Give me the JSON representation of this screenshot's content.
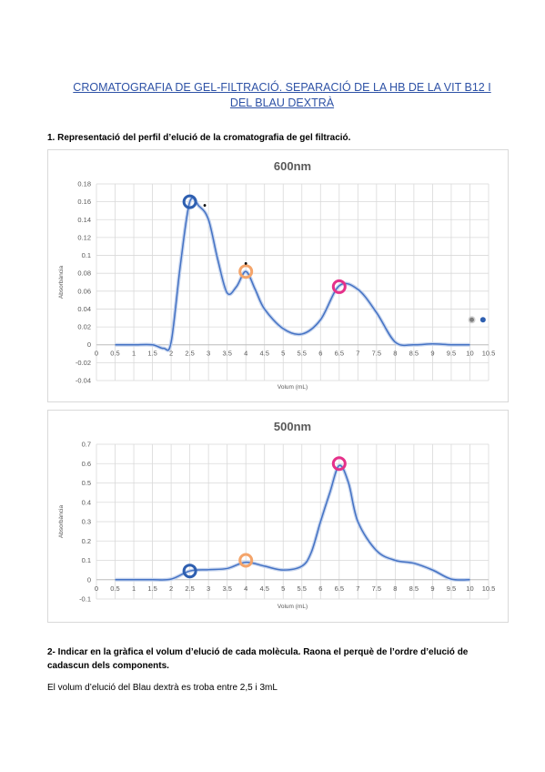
{
  "document": {
    "title_line1": "CROMATOGRAFIA DE GEL-FILTRACIÓ. SEPARACIÓ DE LA HB DE LA VIT B12 I",
    "title_line2": "DEL BLAU DEXTRÀ",
    "question1": "1.   Representació del perfil d’elució de la cromatografia de gel filtració.",
    "question2": "2-    Indicar en la gràfica el volum d’elució de cada molècula. Raona el perquè de l’ordre d’elució de cadascun dels components.",
    "answer": "El volum d’elució del Blau dextrà es troba entre 2,5 i 3mL"
  },
  "colors": {
    "line": "#4472c4",
    "blue_marker": "#2e5fb0",
    "orange_marker": "#f4a46a",
    "pink_marker": "#e5318a"
  },
  "chart_data": [
    {
      "type": "line",
      "title": "600nm",
      "xlabel": "Volum (mL)",
      "ylabel": "Absorbància",
      "xlim": [
        0,
        10.5
      ],
      "ylim": [
        -0.04,
        0.18
      ],
      "yticks": [
        -0.04,
        -0.02,
        0,
        0.02,
        0.04,
        0.06,
        0.08,
        0.1,
        0.12,
        0.14,
        0.16,
        0.18
      ],
      "ytick_labels": [
        "-0.04",
        "-0.02",
        "0",
        "0.02",
        "0.04",
        "0.06",
        "0.08",
        "0.1",
        "0.12",
        "0.14",
        "0.16",
        "0.18"
      ],
      "xticks": [
        0,
        0.5,
        1,
        1.5,
        2,
        2.5,
        3,
        3.5,
        4,
        4.5,
        5,
        5.5,
        6,
        6.5,
        7,
        7.5,
        8,
        8.5,
        9,
        9.5,
        10,
        10.5
      ],
      "xtick_labels": [
        "0",
        "0.5",
        "1",
        "1.5",
        "2",
        "2.5",
        "3",
        "3.5",
        "4",
        "4.5",
        "5",
        "5.5",
        "6",
        "6.5",
        "7",
        "7.5",
        "8",
        "8.5",
        "9",
        "9.5",
        "10",
        "10.5"
      ],
      "series": [
        {
          "x": [
            0.5,
            1,
            1.5,
            1.8,
            2,
            2.25,
            2.5,
            2.75,
            3,
            3.25,
            3.5,
            3.75,
            4,
            4.25,
            4.5,
            5,
            5.5,
            6,
            6.5,
            7,
            7.5,
            8,
            8.5,
            9,
            9.5,
            10
          ],
          "y": [
            0,
            0,
            0,
            -0.004,
            0.003,
            0.09,
            0.16,
            0.155,
            0.14,
            0.095,
            0.058,
            0.065,
            0.082,
            0.062,
            0.04,
            0.018,
            0.012,
            0.028,
            0.066,
            0.062,
            0.036,
            0.003,
            0,
            0.001,
            0,
            0
          ]
        }
      ],
      "markers": [
        {
          "x": 2.5,
          "y": 0.16,
          "color": "blue"
        },
        {
          "x": 4.0,
          "y": 0.082,
          "color": "orange"
        },
        {
          "x": 6.5,
          "y": 0.065,
          "color": "pink"
        }
      ],
      "dots": [
        {
          "x": 2.9,
          "y": 0.156
        },
        {
          "x": 4.0,
          "y": 0.091
        }
      ],
      "legend_dots": [
        {
          "x": 10.05,
          "y": 0.028,
          "color": "gray"
        },
        {
          "x": 10.35,
          "y": 0.028,
          "color": "blue"
        }
      ]
    },
    {
      "type": "line",
      "title": "500nm",
      "xlabel": "Volum (mL)",
      "ylabel": "Absorbància",
      "xlim": [
        0,
        10.5
      ],
      "ylim": [
        -0.1,
        0.7
      ],
      "yticks": [
        -0.1,
        0,
        0.1,
        0.2,
        0.3,
        0.4,
        0.5,
        0.6,
        0.7
      ],
      "ytick_labels": [
        "-0.1",
        "0",
        "0.1",
        "0.2",
        "0.3",
        "0.4",
        "0.5",
        "0.6",
        "0.7"
      ],
      "xticks": [
        0,
        0.5,
        1,
        1.5,
        2,
        2.5,
        3,
        3.5,
        4,
        4.5,
        5,
        5.5,
        6,
        6.5,
        7,
        7.5,
        8,
        8.5,
        9,
        9.5,
        10,
        10.5
      ],
      "xtick_labels": [
        "0",
        "0.5",
        "1",
        "1.5",
        "2",
        "2.5",
        "3",
        "3.5",
        "4",
        "4.5",
        "5",
        "5.5",
        "6",
        "6.5",
        "7",
        "7.5",
        "8",
        "8.5",
        "9",
        "9.5",
        "10",
        "10.5"
      ],
      "series": [
        {
          "x": [
            0.5,
            1,
            1.5,
            2,
            2.5,
            3,
            3.5,
            4,
            4.5,
            5,
            5.5,
            5.75,
            6,
            6.25,
            6.5,
            6.75,
            7,
            7.5,
            8,
            8.5,
            9,
            9.5,
            10
          ],
          "y": [
            0,
            0,
            0,
            0.003,
            0.045,
            0.052,
            0.058,
            0.09,
            0.07,
            0.05,
            0.07,
            0.14,
            0.3,
            0.45,
            0.59,
            0.5,
            0.3,
            0.15,
            0.1,
            0.085,
            0.05,
            0.003,
            0
          ]
        }
      ],
      "markers": [
        {
          "x": 2.5,
          "y": 0.045,
          "color": "blue"
        },
        {
          "x": 4.0,
          "y": 0.1,
          "color": "orange"
        },
        {
          "x": 6.5,
          "y": 0.6,
          "color": "pink"
        }
      ]
    }
  ]
}
